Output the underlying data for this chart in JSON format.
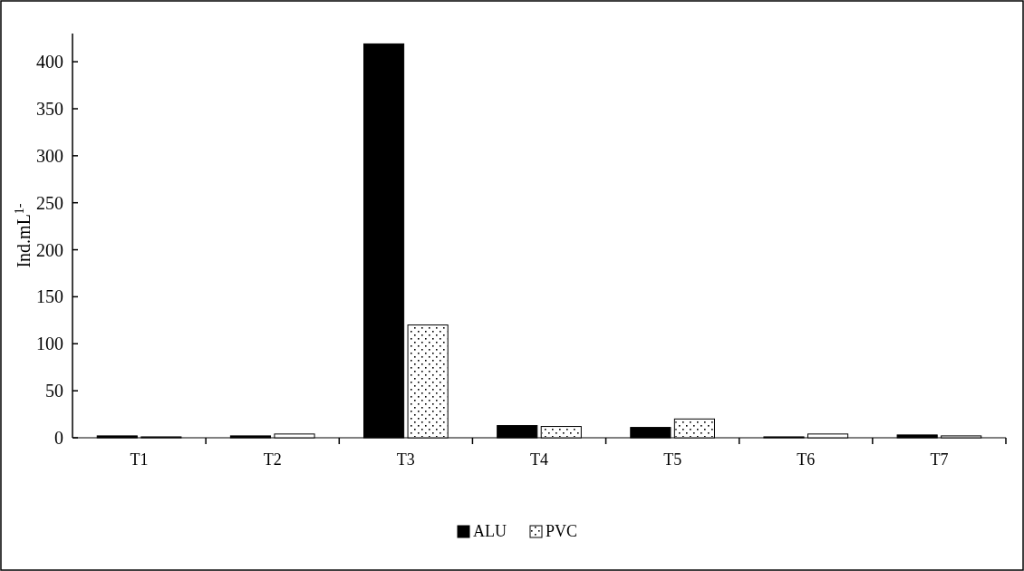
{
  "chart_data": {
    "type": "bar",
    "ylabel": "Ind.mL$^{1-}$",
    "categories": [
      "T1",
      "T2",
      "T3",
      "T4",
      "T5",
      "T6",
      "T7"
    ],
    "series": [
      {
        "name": "ALU",
        "color": "#000000",
        "values": [
          2,
          2,
          419,
          13,
          11,
          1,
          3
        ]
      },
      {
        "name": "PVC",
        "color": "#ffffff",
        "values": [
          1,
          4,
          120,
          12,
          20,
          4,
          2
        ]
      }
    ],
    "ylim": [
      0,
      430
    ],
    "yticks": [
      0,
      50,
      100,
      150,
      200,
      250,
      300,
      350,
      400
    ],
    "grid": false,
    "legend": "bottom"
  }
}
